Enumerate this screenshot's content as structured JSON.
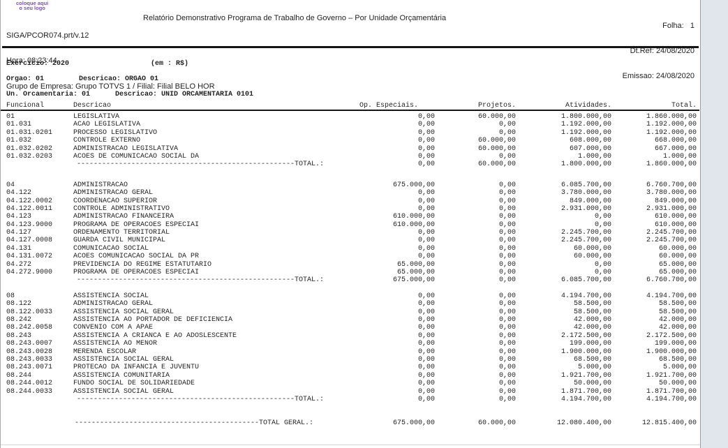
{
  "colors": {
    "logo_purple": "#7a52ad",
    "rule_black": "#141414",
    "gutter_gray": "#e1e6ec"
  },
  "header": {
    "logo_line1": "coloque aqui",
    "logo_line2": "o seu logo",
    "program_id": "SIGA/PCOR074.prt/v.12",
    "title": "Relatório Demonstrativo Programa de Trabalho de Governo – Por Unidade Orçamentária",
    "hora": "Hora: 08:23:44",
    "grupo_empresa": "Grupo de Empresa: Grupo TOTVS 1 / Filial: Filial BELO HOR",
    "folha": "Folha:   1",
    "dt_ref": "Dt.Ref: 24/08/2020",
    "emissao": "Emissao: 24/08/2020"
  },
  "filters": {
    "exercicio": "Exercicio: 2020",
    "moeda": "(em : R$)",
    "orgao": "Orgao: 01",
    "orgao_desc": "Descricao: ORGAO 01",
    "unidade": "Un. Orcamentaria: 01",
    "unidade_desc": "Descricao: UNID ORCAMENTARIA 0101"
  },
  "table": {
    "headers": {
      "funcional": "Funcional",
      "descricao": "Descricao",
      "op_especiais": "Op. Especiais.",
      "projetos": "Projetos.",
      "atividades": "Atividades.",
      "total": "Total."
    },
    "blocks": [
      {
        "rows": [
          {
            "funcional": "01",
            "descricao": "LEGISLATIVA",
            "values": [
              "0,00",
              "60.000,00",
              "1.800.000,00",
              "1.860.000,00"
            ]
          },
          {
            "funcional": "01.031",
            "descricao": "ACAO LEGISLATIVA",
            "values": [
              "0,00",
              "0,00",
              "1.192.000,00",
              "1.192.000,00"
            ]
          },
          {
            "funcional": "01.031.0201",
            "descricao": "PROCESSO LEGISLATIVO",
            "values": [
              "0,00",
              "0,00",
              "1.192.000,00",
              "1.192.000,00"
            ]
          },
          {
            "funcional": "01.032",
            "descricao": "CONTROLE EXTERNO",
            "values": [
              "0,00",
              "60.000,00",
              "608.000,00",
              "668.000,00"
            ]
          },
          {
            "funcional": "01.032.0202",
            "descricao": "ADMINISTRACAO LEGISLATIVA",
            "values": [
              "0,00",
              "60.000,00",
              "607.000,00",
              "667.000,00"
            ]
          },
          {
            "funcional": "01.032.0203",
            "descricao": "ACOES DE COMUNICACAO SOCIAL DA",
            "values": [
              "0,00",
              "0,00",
              "1.000,00",
              "1.000,00"
            ]
          }
        ],
        "total": {
          "label": "----------------------------------------------------TOTAL.:",
          "values": [
            "0,00",
            "60.000,00",
            "1.800.000,00",
            "1.860.000,00"
          ]
        }
      },
      {
        "rows": [
          {
            "funcional": "04",
            "descricao": "ADMINISTRACAO",
            "values": [
              "675.000,00",
              "0,00",
              "6.085.700,00",
              "6.760.700,00"
            ]
          },
          {
            "funcional": "04.122",
            "descricao": "ADMINISTRACAO GERAL",
            "values": [
              "0,00",
              "0,00",
              "3.780.000,00",
              "3.780.000,00"
            ]
          },
          {
            "funcional": "04.122.0002",
            "descricao": "COORDENACAO SUPERIOR",
            "values": [
              "0,00",
              "0,00",
              "849.000,00",
              "849.000,00"
            ]
          },
          {
            "funcional": "04.122.0011",
            "descricao": "CONTROLE ADMINISTRATIVO",
            "values": [
              "0,00",
              "0,00",
              "2.931.000,00",
              "2.931.000,00"
            ]
          },
          {
            "funcional": "04.123",
            "descricao": "ADMINISTRACAO FINANCEIRA",
            "values": [
              "610.000,00",
              "0,00",
              "0,00",
              "610.000,00"
            ]
          },
          {
            "funcional": "04.123.9000",
            "descricao": "PROGRAMA DE OPERACOES ESPECIAI",
            "values": [
              "610.000,00",
              "0,00",
              "0,00",
              "610.000,00"
            ]
          },
          {
            "funcional": "04.127",
            "descricao": "ORDENAMENTO TERRITORIAL",
            "values": [
              "0,00",
              "0,00",
              "2.245.700,00",
              "2.245.700,00"
            ]
          },
          {
            "funcional": "04.127.0008",
            "descricao": "GUARDA CIVIL MUNICIPAL",
            "values": [
              "0,00",
              "0,00",
              "2.245.700,00",
              "2.245.700,00"
            ]
          },
          {
            "funcional": "04.131",
            "descricao": "COMUNICACAO SOCIAL",
            "values": [
              "0,00",
              "0,00",
              "60.000,00",
              "60.000,00"
            ]
          },
          {
            "funcional": "04.131.0072",
            "descricao": "ACOES COMUNICACAO SOCIAL DA PR",
            "values": [
              "0,00",
              "0,00",
              "60.000,00",
              "60.000,00"
            ]
          },
          {
            "funcional": "04.272",
            "descricao": "PREVIDENCIA DO REGIME ESTATUTARIO",
            "values": [
              "65.000,00",
              "0,00",
              "0,00",
              "65.000,00"
            ]
          },
          {
            "funcional": "04.272.9000",
            "descricao": "PROGRAMA DE OPERACOES ESPECIAI",
            "values": [
              "65.000,00",
              "0,00",
              "0,00",
              "65.000,00"
            ]
          }
        ],
        "total": {
          "label": "----------------------------------------------------TOTAL.:",
          "values": [
            "675.000,00",
            "0,00",
            "6.085.700,00",
            "6.760.700,00"
          ]
        }
      },
      {
        "rows": [
          {
            "funcional": "08",
            "descricao": "ASSISTENCIA SOCIAL",
            "values": [
              "0,00",
              "0,00",
              "4.194.700,00",
              "4.194.700,00"
            ]
          },
          {
            "funcional": "08.122",
            "descricao": "ADMINISTRACAO GERAL",
            "values": [
              "0,00",
              "0,00",
              "58.500,00",
              "58.500,00"
            ]
          },
          {
            "funcional": "08.122.0033",
            "descricao": "ASSISTENCIA SOCIAL GERAL",
            "values": [
              "0,00",
              "0,00",
              "58.500,00",
              "58.500,00"
            ]
          },
          {
            "funcional": "08.242",
            "descricao": "ASSISTENCIA AO PORTADOR DE DEFICIENCIA",
            "values": [
              "0,00",
              "0,00",
              "42.000,00",
              "42.000,00"
            ]
          },
          {
            "funcional": "08.242.0058",
            "descricao": "CONVENIO COM A APAE",
            "values": [
              "0,00",
              "0,00",
              "42.000,00",
              "42.000,00"
            ]
          },
          {
            "funcional": "08.243",
            "descricao": "ASSISTENCIA A CRIANCA E AO ADOSLESCENTE",
            "values": [
              "0,00",
              "0,00",
              "2.172.500,00",
              "2.172.500,00"
            ]
          },
          {
            "funcional": "08.243.0007",
            "descricao": "ASSISTENCIA AO MENOR",
            "values": [
              "0,00",
              "0,00",
              "199.000,00",
              "199.000,00"
            ]
          },
          {
            "funcional": "08.243.0028",
            "descricao": "MERENDA ESCOLAR",
            "values": [
              "0,00",
              "0,00",
              "1.900.000,00",
              "1.900.000,00"
            ]
          },
          {
            "funcional": "08.243.0033",
            "descricao": "ASSISTENCIA SOCIAL GERAL",
            "values": [
              "0,00",
              "0,00",
              "68.500,00",
              "68.500,00"
            ]
          },
          {
            "funcional": "08.243.0071",
            "descricao": "PROTECAO DA INFANCIA E JUVENTU",
            "values": [
              "0,00",
              "0,00",
              "5.000,00",
              "5.000,00"
            ]
          },
          {
            "funcional": "08.244",
            "descricao": "ASSISTENCIA COMUNITARIA",
            "values": [
              "0,00",
              "0,00",
              "1.921.700,00",
              "1.921.700,00"
            ]
          },
          {
            "funcional": "08.244.0012",
            "descricao": "FUNDO SOCIAL DE SOLIDARIEDADE",
            "values": [
              "0,00",
              "0,00",
              "50.000,00",
              "50.000,00"
            ]
          },
          {
            "funcional": "08.244.0033",
            "descricao": "ASSISTENCIA SOCIAL GERAL",
            "values": [
              "0,00",
              "0,00",
              "1.871.700,00",
              "1.871.700,00"
            ]
          }
        ],
        "total": {
          "label": "----------------------------------------------------TOTAL.:",
          "values": [
            "0,00",
            "0,00",
            "4.194.700,00",
            "4.194.700,00"
          ]
        }
      }
    ],
    "total_geral": {
      "label": "--------------------------------------------TOTAL GERAL.:",
      "values": [
        "675.000,00",
        "60.000,00",
        "12.080.400,00",
        "12.815.400,00"
      ]
    }
  }
}
